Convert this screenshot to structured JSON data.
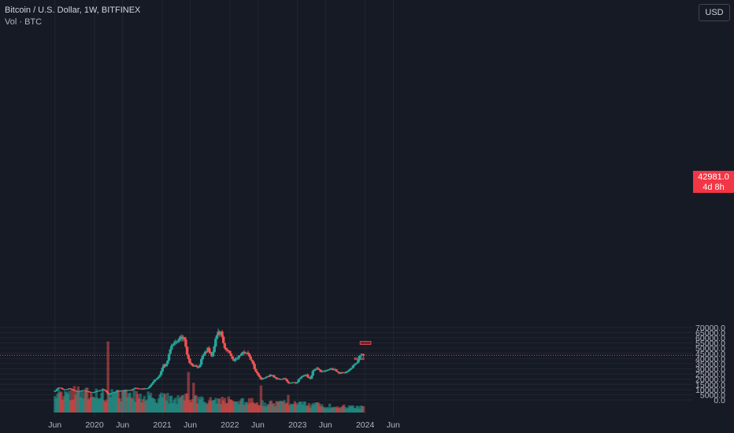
{
  "header": {
    "title": "Bitcoin / U.S. Dollar, 1W, BITFINEX",
    "volume_label": "Vol · BTC",
    "currency": "USD"
  },
  "last_price": {
    "value": "42981.0",
    "countdown": "4d 8h"
  },
  "colors": {
    "background": "#161a25",
    "up": "#26a69a",
    "down": "#ef5350",
    "grid": "#222631",
    "text": "#b2b5be",
    "zone": "#b22833"
  },
  "chart_data": {
    "type": "candlestick",
    "title": "Bitcoin / U.S. Dollar, 1W, BITFINEX",
    "y_ticks": [
      "70000.0",
      "65000.0",
      "60000.0",
      "55000.0",
      "50000.0",
      "45000.0",
      "40000.0",
      "35000.0",
      "30000.0",
      "25000.0",
      "20000.0",
      "15000.0",
      "10000.0",
      "5000.0",
      "0.0"
    ],
    "x_ticks": [
      "Jun",
      "2020",
      "Jun",
      "2021",
      "Jun",
      "2022",
      "Jun",
      "2023",
      "Jun",
      "2024",
      "Jun"
    ],
    "ylim": [
      0,
      73000
    ],
    "grid": true,
    "price_path": [
      [
        "2019-06-01",
        8500
      ],
      [
        "2019-06-24",
        12000
      ],
      [
        "2019-07-15",
        10200
      ],
      [
        "2019-08-20",
        10800
      ],
      [
        "2019-10-01",
        8200
      ],
      [
        "2019-10-28",
        9300
      ],
      [
        "2019-12-15",
        7100
      ],
      [
        "2020-01-20",
        8800
      ],
      [
        "2020-02-15",
        10200
      ],
      [
        "2020-03-01",
        8600
      ],
      [
        "2020-03-15",
        5200
      ],
      [
        "2020-04-10",
        7000
      ],
      [
        "2020-05-05",
        8900
      ],
      [
        "2020-06-15",
        9400
      ],
      [
        "2020-07-20",
        9500
      ],
      [
        "2020-08-10",
        11800
      ],
      [
        "2020-09-10",
        10400
      ],
      [
        "2020-10-15",
        11500
      ],
      [
        "2020-11-15",
        17800
      ],
      [
        "2020-12-20",
        24000
      ],
      [
        "2021-01-05",
        34000
      ],
      [
        "2021-01-20",
        32000
      ],
      [
        "2021-02-15",
        50000
      ],
      [
        "2021-03-10",
        56000
      ],
      [
        "2021-04-10",
        61000
      ],
      [
        "2021-05-01",
        57000
      ],
      [
        "2021-05-15",
        45000
      ],
      [
        "2021-05-25",
        36000
      ],
      [
        "2021-06-20",
        33000
      ],
      [
        "2021-07-20",
        31000
      ],
      [
        "2021-08-10",
        45000
      ],
      [
        "2021-09-05",
        49000
      ],
      [
        "2021-09-25",
        42000
      ],
      [
        "2021-10-20",
        62000
      ],
      [
        "2021-11-10",
        66000
      ],
      [
        "2021-12-05",
        49000
      ],
      [
        "2021-12-28",
        47000
      ],
      [
        "2022-01-25",
        37000
      ],
      [
        "2022-02-15",
        42000
      ],
      [
        "2022-03-28",
        47000
      ],
      [
        "2022-04-25",
        39000
      ],
      [
        "2022-05-15",
        30000
      ],
      [
        "2022-06-18",
        20000
      ],
      [
        "2022-07-20",
        23000
      ],
      [
        "2022-08-15",
        24000
      ],
      [
        "2022-09-15",
        20000
      ],
      [
        "2022-10-25",
        20500
      ],
      [
        "2022-11-10",
        16500
      ],
      [
        "2022-12-25",
        16600
      ],
      [
        "2023-01-20",
        22000
      ],
      [
        "2023-02-20",
        24000
      ],
      [
        "2023-03-10",
        20000
      ],
      [
        "2023-03-25",
        28000
      ],
      [
        "2023-04-15",
        30000
      ],
      [
        "2023-05-15",
        27000
      ],
      [
        "2023-06-20",
        30500
      ],
      [
        "2023-07-15",
        30000
      ],
      [
        "2023-08-20",
        26000
      ],
      [
        "2023-09-15",
        26500
      ],
      [
        "2023-10-20",
        30000
      ],
      [
        "2023-10-30",
        34500
      ],
      [
        "2023-11-20",
        37500
      ],
      [
        "2023-12-05",
        44000
      ],
      [
        "2023-12-25",
        42981
      ]
    ],
    "volume_axis": {
      "ylim": [
        0,
        13000
      ]
    },
    "volume_spikes": [
      [
        "2020-03-15",
        10500
      ],
      [
        "2021-05-20",
        6000
      ],
      [
        "2021-06-20",
        4400
      ],
      [
        "2022-06-15",
        4000
      ],
      [
        "2022-11-10",
        2600
      ]
    ],
    "zones": [
      {
        "x0": "2023-12-05",
        "x1": "2024-02-01",
        "y0": 53500,
        "y1": 56500
      },
      {
        "x0": "2023-11-05",
        "x1": "2023-12-25",
        "y0": 39000,
        "y1": 40500
      }
    ],
    "last_price_line": 42981
  }
}
